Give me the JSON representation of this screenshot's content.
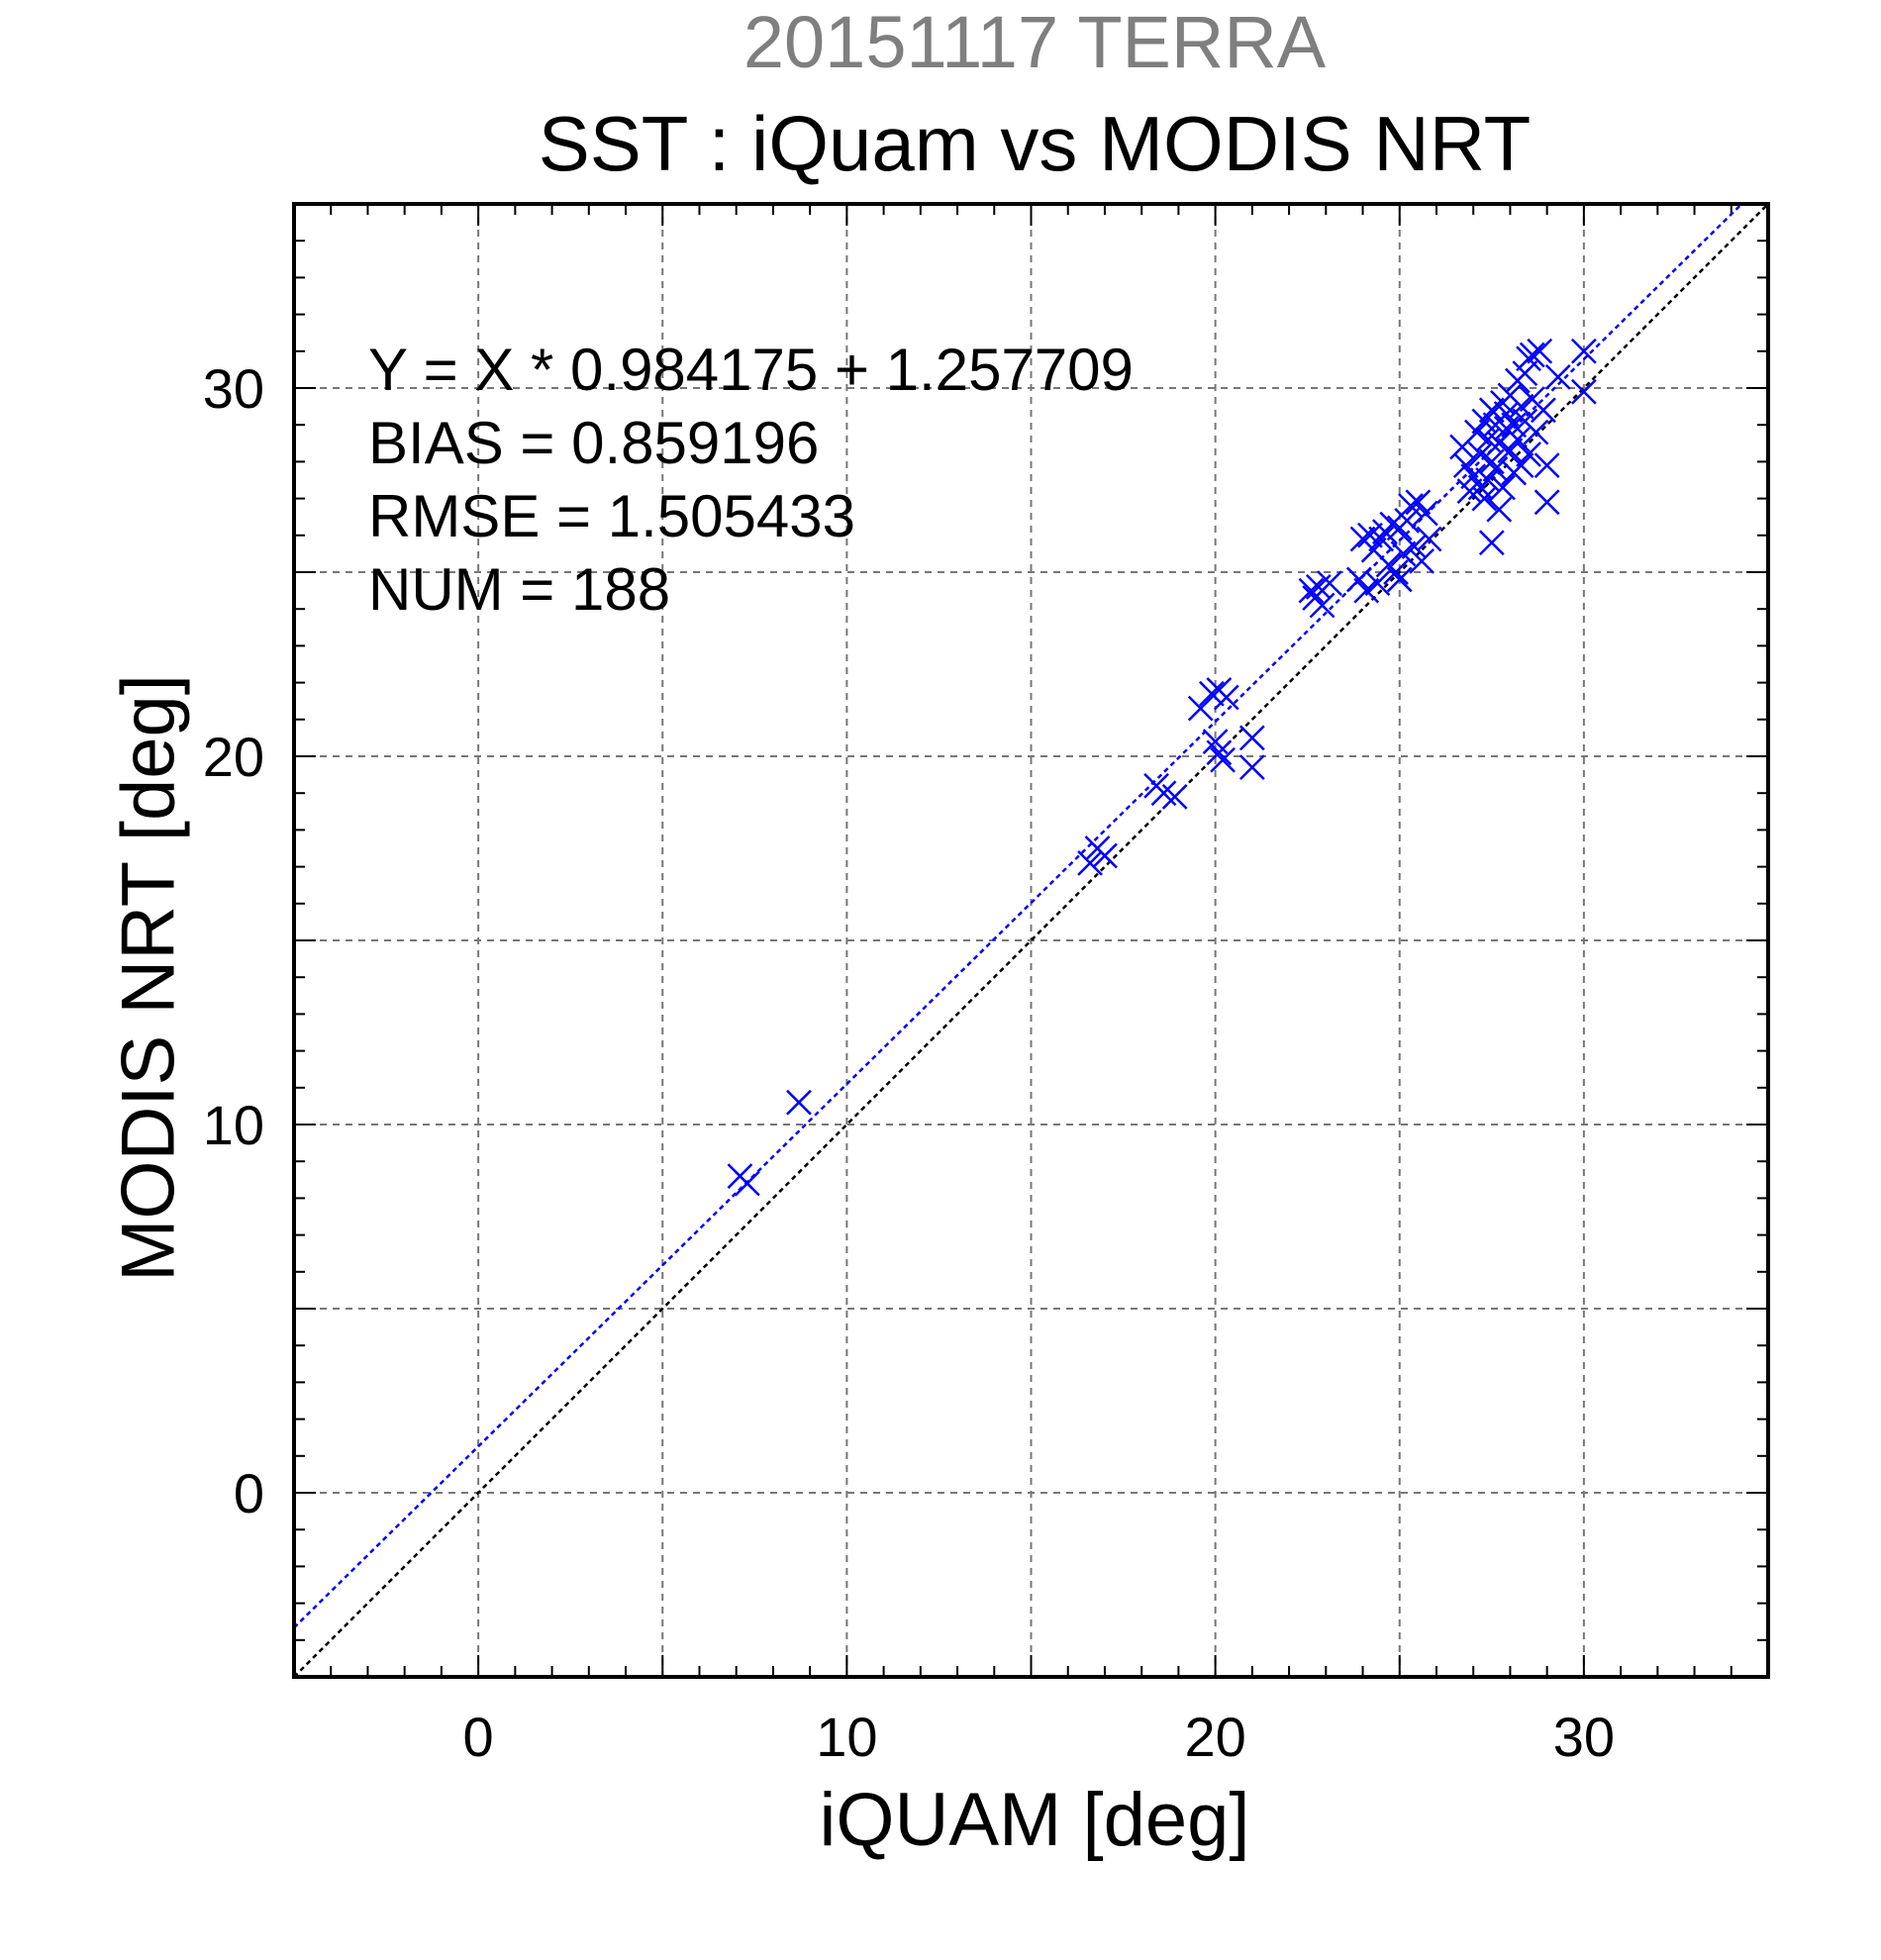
{
  "chart_data": {
    "type": "scatter",
    "supertitle": "20151117 TERRA",
    "title": "SST : iQuam vs MODIS NRT",
    "xlabel": "iQUAM [deg]",
    "ylabel": "MODIS NRT [deg]",
    "xlim": [
      -5,
      35
    ],
    "ylim": [
      -5,
      35
    ],
    "xticks": [
      0,
      10,
      20,
      30
    ],
    "yticks": [
      0,
      10,
      20,
      30
    ],
    "grid": true,
    "annotations": [
      "Y = X * 0.984175 + 1.257709",
      "BIAS = 0.859196",
      "RMSE = 1.505433",
      "NUM = 188"
    ],
    "fit": {
      "slope": 0.984175,
      "intercept": 1.257709,
      "color": "#0000ff"
    },
    "identity_line_color": "#000000",
    "marker": "x",
    "marker_color": "#0000ff",
    "points": [
      [
        7.1,
        8.6
      ],
      [
        7.3,
        8.4
      ],
      [
        8.7,
        10.6
      ],
      [
        16.6,
        17.1
      ],
      [
        16.8,
        17.5
      ],
      [
        17.0,
        17.3
      ],
      [
        18.4,
        19.2
      ],
      [
        18.6,
        19.0
      ],
      [
        18.9,
        18.9
      ],
      [
        19.6,
        21.3
      ],
      [
        19.9,
        21.7
      ],
      [
        20.1,
        21.8
      ],
      [
        20.3,
        21.6
      ],
      [
        20.0,
        20.4
      ],
      [
        20.1,
        20.1
      ],
      [
        20.2,
        19.9
      ],
      [
        21.0,
        20.5
      ],
      [
        21.0,
        19.7
      ],
      [
        22.6,
        24.5
      ],
      [
        22.7,
        24.3
      ],
      [
        22.8,
        24.6
      ],
      [
        22.9,
        24.1
      ],
      [
        23.1,
        24.7
      ],
      [
        23.9,
        24.8
      ],
      [
        24.0,
        25.9
      ],
      [
        24.1,
        24.5
      ],
      [
        24.2,
        26.0
      ],
      [
        24.3,
        25.6
      ],
      [
        24.4,
        24.7
      ],
      [
        24.5,
        25.9
      ],
      [
        24.6,
        26.1
      ],
      [
        24.7,
        25.2
      ],
      [
        24.8,
        26.3
      ],
      [
        24.9,
        25.0
      ],
      [
        25.0,
        26.2
      ],
      [
        25.0,
        24.8
      ],
      [
        25.1,
        25.5
      ],
      [
        25.2,
        26.4
      ],
      [
        25.3,
        26.8
      ],
      [
        25.4,
        25.7
      ],
      [
        25.5,
        26.9
      ],
      [
        25.6,
        25.3
      ],
      [
        25.7,
        26.6
      ],
      [
        25.8,
        25.9
      ],
      [
        26.7,
        28.4
      ],
      [
        26.8,
        27.9
      ],
      [
        26.9,
        27.2
      ],
      [
        27.0,
        27.6
      ],
      [
        27.1,
        28.8
      ],
      [
        27.2,
        27.3
      ],
      [
        27.2,
        28.2
      ],
      [
        27.3,
        29.1
      ],
      [
        27.3,
        27.0
      ],
      [
        27.4,
        28.6
      ],
      [
        27.4,
        27.5
      ],
      [
        27.5,
        29.4
      ],
      [
        27.5,
        28.0
      ],
      [
        27.6,
        27.8
      ],
      [
        27.6,
        29.0
      ],
      [
        27.7,
        28.5
      ],
      [
        27.7,
        26.7
      ],
      [
        27.8,
        29.6
      ],
      [
        27.8,
        27.3
      ],
      [
        27.9,
        28.9
      ],
      [
        27.9,
        29.3
      ],
      [
        28.0,
        28.3
      ],
      [
        28.0,
        29.8
      ],
      [
        28.1,
        27.7
      ],
      [
        28.1,
        29.0
      ],
      [
        28.2,
        30.2
      ],
      [
        28.2,
        28.6
      ],
      [
        28.3,
        29.5
      ],
      [
        28.3,
        27.9
      ],
      [
        28.4,
        30.4
      ],
      [
        28.4,
        29.1
      ],
      [
        28.5,
        30.8
      ],
      [
        28.5,
        28.2
      ],
      [
        28.6,
        29.7
      ],
      [
        28.6,
        30.9
      ],
      [
        28.7,
        28.8
      ],
      [
        28.8,
        31.0
      ],
      [
        28.9,
        29.4
      ],
      [
        29.0,
        27.9
      ],
      [
        29.0,
        26.9
      ],
      [
        27.5,
        25.8
      ],
      [
        29.3,
        30.3
      ],
      [
        30.0,
        31.0
      ],
      [
        30.0,
        29.9
      ]
    ]
  }
}
